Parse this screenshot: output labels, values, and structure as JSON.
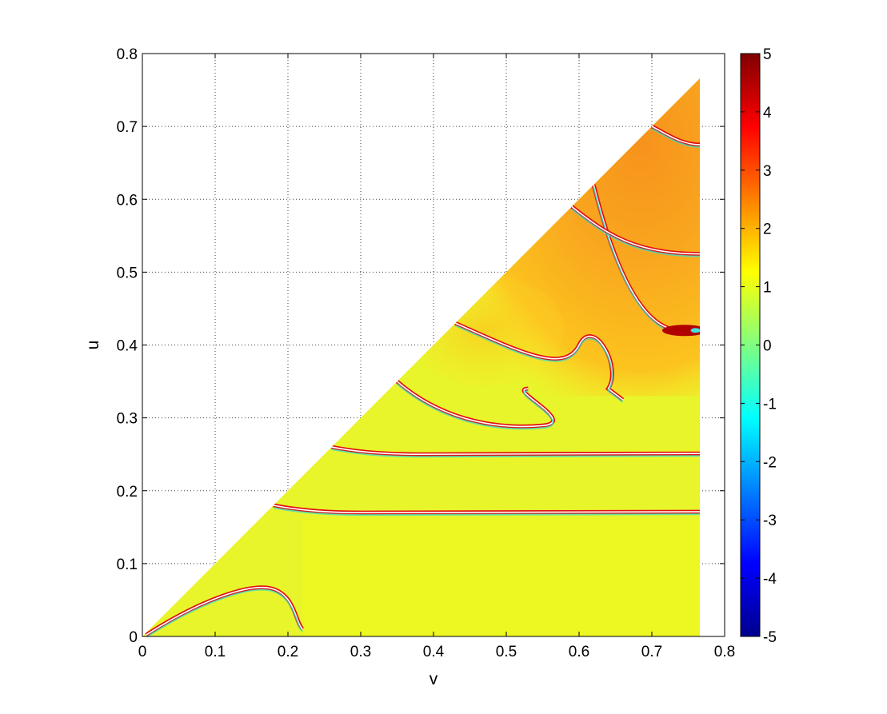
{
  "chart_data": {
    "type": "heatmap",
    "title": "",
    "xlabel": "v",
    "ylabel": "u",
    "xlim": [
      0,
      0.8
    ],
    "ylim": [
      0,
      0.8
    ],
    "xticks": [
      "0",
      "0.1",
      "0.2",
      "0.3",
      "0.4",
      "0.5",
      "0.6",
      "0.7",
      "0.8"
    ],
    "yticks": [
      "0",
      "0.1",
      "0.2",
      "0.3",
      "0.4",
      "0.5",
      "0.6",
      "0.7",
      "0.8"
    ],
    "grid": true,
    "domain": {
      "shape": "triangle",
      "v_max": 0.766,
      "note_region": "u <= v"
    },
    "colorbar": {
      "colormap": "jet",
      "range": [
        -5,
        5
      ],
      "ticks": [
        "5",
        "4",
        "3",
        "2",
        "1",
        "0",
        "-1",
        "-2",
        "-3",
        "-4",
        "-5"
      ],
      "colors": [
        "#00008f",
        "#0000ff",
        "#0080ff",
        "#00ffff",
        "#80ff80",
        "#ffff00",
        "#ff8000",
        "#ff0000",
        "#800000"
      ]
    },
    "field": {
      "background_value": 0.9,
      "background_color": "#e8f52a",
      "warm_region": {
        "v_from": 0.52,
        "u_from": 0.33,
        "value": 2.0
      },
      "bands": [
        {
          "u": 0.17,
          "v_start": 0.18,
          "v_end": 0.766
        },
        {
          "u": 0.25,
          "v_start": 0.26,
          "v_end": 0.766
        },
        {
          "u": 0.285,
          "v_start": 0.35,
          "v_end": 0.55
        },
        {
          "u": 0.33,
          "v_start": 0.43,
          "v_end": 0.66
        },
        {
          "u": 0.42,
          "v_start": 0.62,
          "v_end": 0.766
        },
        {
          "u": 0.525,
          "v_start": 0.59,
          "v_end": 0.766
        },
        {
          "u": 0.675,
          "v_start": 0.7,
          "v_end": 0.766
        }
      ]
    }
  }
}
